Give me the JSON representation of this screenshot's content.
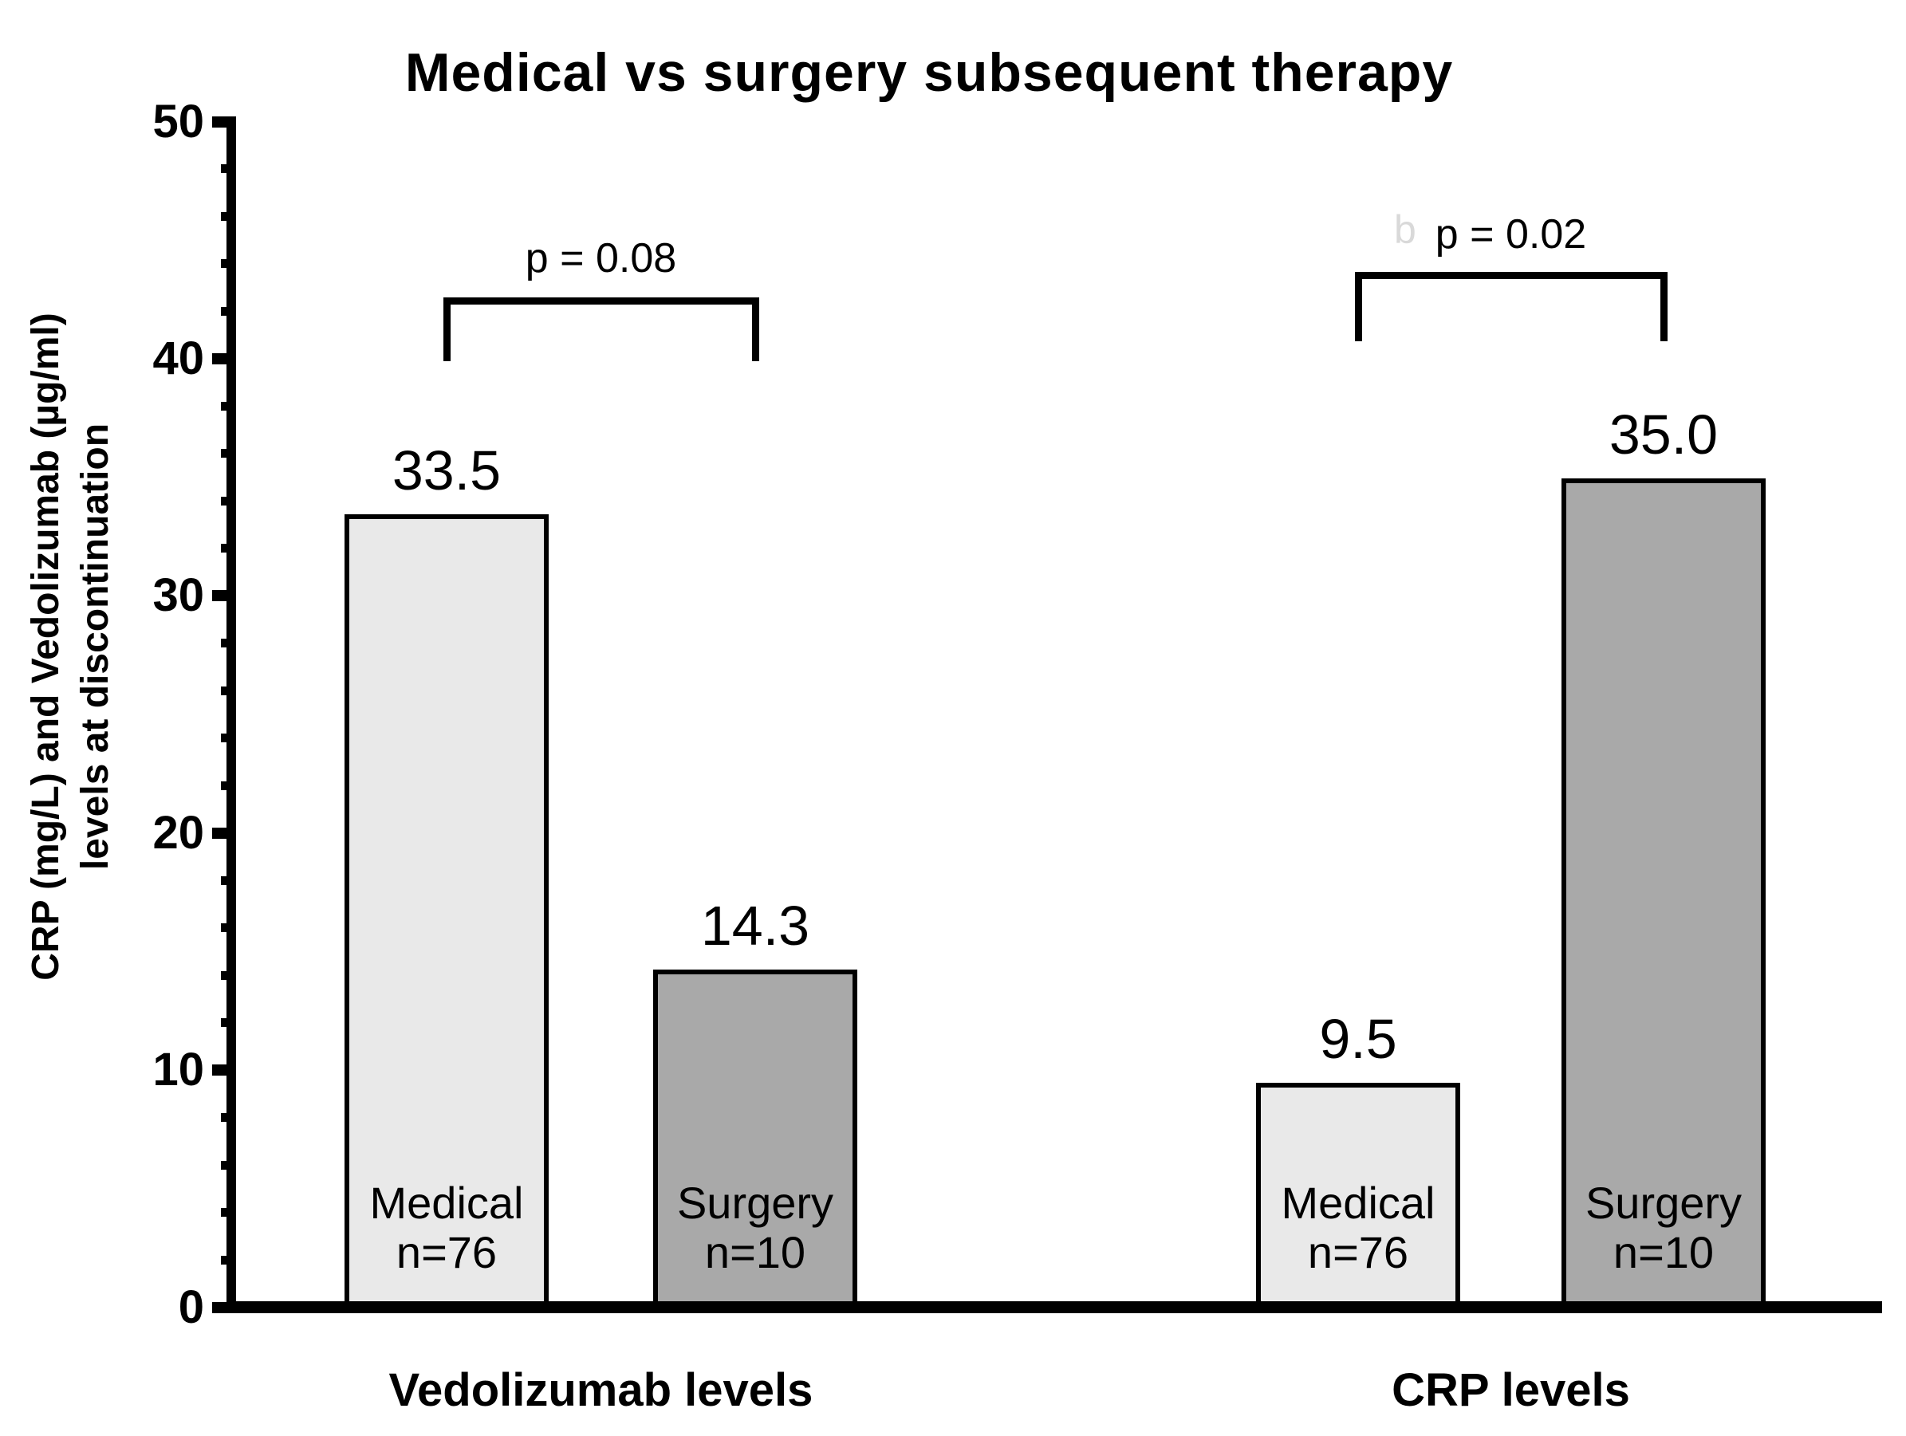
{
  "title": "Medical vs surgery subsequent therapy",
  "watermark": "b",
  "y_axis": {
    "label_line1": "CRP (mg/L) and Vedolizumab (µg/ml)",
    "label_line2": "levels at discontinuation",
    "tick_labels": [
      "0",
      "10",
      "20",
      "30",
      "40",
      "50"
    ],
    "min": 0,
    "max": 50,
    "major_step": 10,
    "minor_step": 2
  },
  "colors": {
    "medical_fill": "#e9e9e9",
    "surgery_fill": "#a9a9a9",
    "line": "#000000",
    "watermark": "#d9d9d9"
  },
  "chart_data": {
    "type": "bar",
    "title": "Medical vs surgery subsequent therapy",
    "ylabel": "CRP (mg/L) and Vedolizumab (µg/ml) levels at discontinuation",
    "ylim": [
      0,
      50
    ],
    "grid": false,
    "legend_position": "none",
    "categories": [
      "Vedolizumab levels",
      "CRP levels"
    ],
    "series": [
      {
        "name": "Medical n=76",
        "values": [
          33.5,
          9.5
        ]
      },
      {
        "name": "Surgery n=10",
        "values": [
          14.3,
          35.0
        ]
      }
    ],
    "annotations": [
      {
        "category": "Vedolizumab levels",
        "text": "p = 0.08"
      },
      {
        "category": "CRP levels",
        "text": "p = 0.02"
      }
    ]
  },
  "groups": [
    {
      "label": "Vedolizumab levels",
      "p_label": "p = 0.08",
      "bars": [
        {
          "value_label": "33.5",
          "line1": "Medical",
          "line2": "n=76",
          "type": "medical"
        },
        {
          "value_label": "14.3",
          "line1": "Surgery",
          "line2": "n=10",
          "type": "surgery"
        }
      ]
    },
    {
      "label": "CRP levels",
      "p_label": "p = 0.02",
      "bars": [
        {
          "value_label": "9.5",
          "line1": "Medical",
          "line2": "n=76",
          "type": "medical"
        },
        {
          "value_label": "35.0",
          "line1": "Surgery",
          "line2": "n=10",
          "type": "surgery"
        }
      ]
    }
  ]
}
